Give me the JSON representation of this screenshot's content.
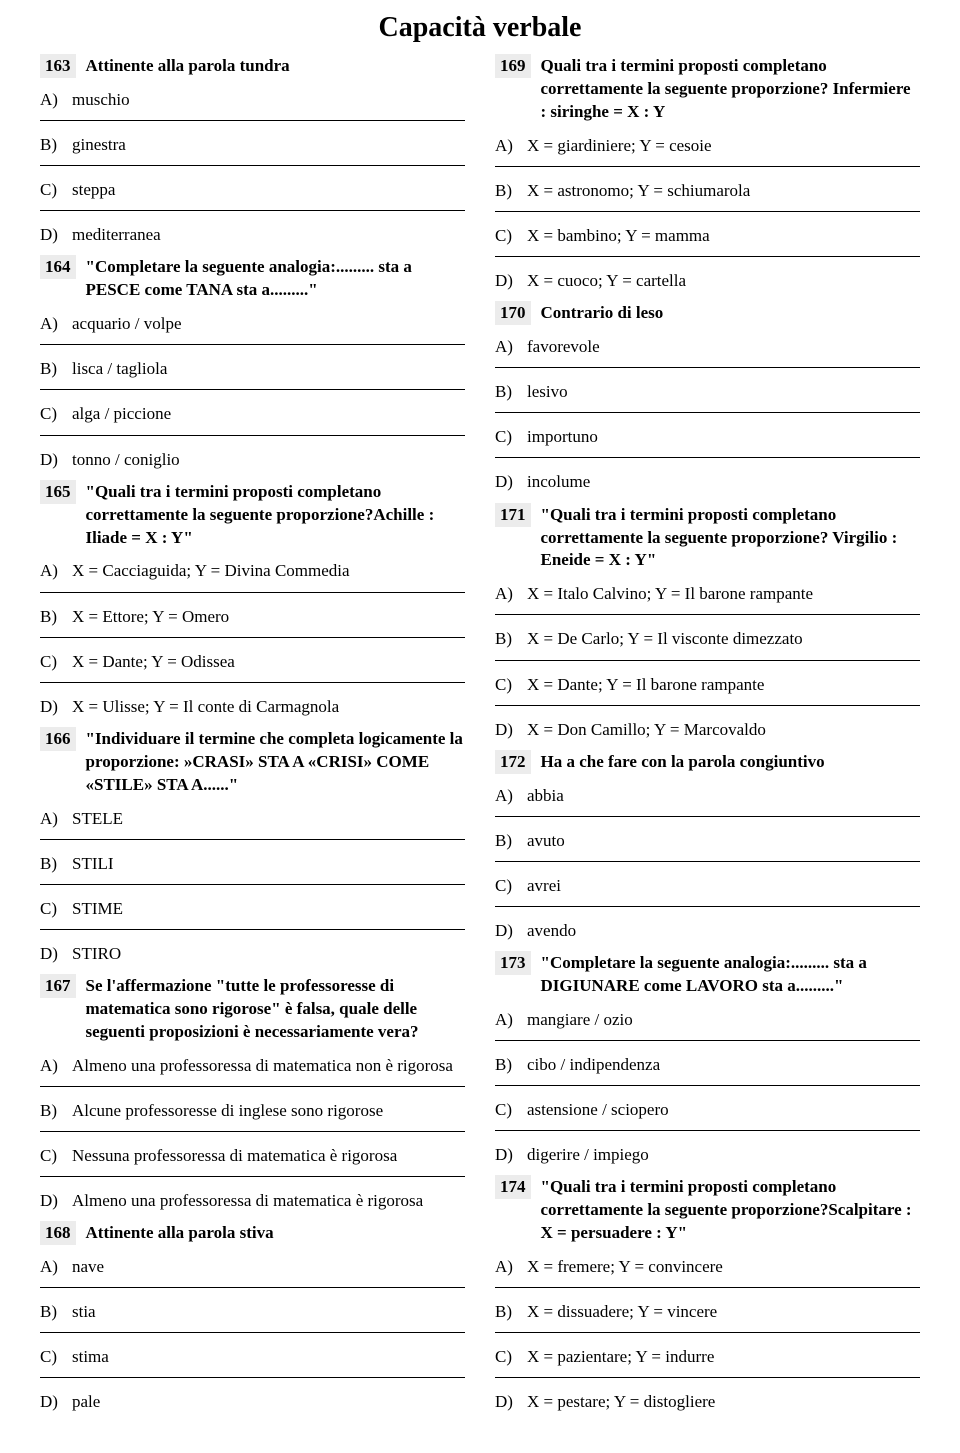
{
  "title": "Capacità verbale",
  "left": [
    {
      "num": "163",
      "q": "Attinente alla parola tundra",
      "opts": [
        "muschio",
        "ginestra",
        "steppa",
        "mediterranea"
      ]
    },
    {
      "num": "164",
      "q": "\"Completare la seguente analogia:......... sta a PESCE come TANA sta a.........\"",
      "opts": [
        "acquario / volpe",
        "lisca / tagliola",
        "alga / piccione",
        "tonno / coniglio"
      ]
    },
    {
      "num": "165",
      "q": "\"Quali tra i termini proposti completano correttamente la seguente proporzione?Achille : Iliade = X : Y\"",
      "opts": [
        "X = Cacciaguida; Y = Divina Commedia",
        "X = Ettore; Y = Omero",
        "X = Dante; Y = Odissea",
        "X = Ulisse; Y = Il conte di Carmagnola"
      ]
    },
    {
      "num": "166",
      "q": "\"Individuare il termine che completa logicamente la proporzione: »CRASI» STA A «CRISI» COME «STILE» STA A......\"",
      "opts": [
        "STELE",
        "STILI",
        "STIME",
        "STIRO"
      ]
    },
    {
      "num": "167",
      "q": "Se l'affermazione \"tutte le professoresse di matematica sono rigorose\" è falsa, quale delle seguenti proposizioni è necessariamente vera?",
      "opts": [
        "Almeno una professoressa di matematica non è rigorosa",
        "Alcune professoresse di inglese sono rigorose",
        "Nessuna professoressa di matematica è rigorosa",
        "Almeno una professoressa di matematica è rigorosa"
      ]
    },
    {
      "num": "168",
      "q": "Attinente alla parola  stiva",
      "opts": [
        "nave",
        "stia",
        "stima",
        "pale"
      ]
    }
  ],
  "right": [
    {
      "num": "169",
      "q": "Quali tra i termini proposti completano correttamente la seguente proporzione? Infermiere : siringhe = X : Y",
      "opts": [
        "X = giardiniere; Y = cesoie",
        "X = astronomo; Y = schiumarola",
        "X = bambino; Y = mamma",
        "X = cuoco; Y = cartella"
      ]
    },
    {
      "num": "170",
      "q": "Contrario di leso",
      "opts": [
        "favorevole",
        "lesivo",
        "importuno",
        "incolume"
      ]
    },
    {
      "num": "171",
      "q": "\"Quali tra i termini proposti completano correttamente la seguente proporzione? Virgilio : Eneide = X : Y\"",
      "opts": [
        "X = Italo Calvino; Y = Il barone rampante",
        "X = De Carlo; Y = Il visconte dimezzato",
        "X = Dante; Y = Il barone rampante",
        "X = Don Camillo; Y = Marcovaldo"
      ]
    },
    {
      "num": "172",
      "q": "Ha a che fare con la parola congiuntivo",
      "opts": [
        "abbia",
        "avuto",
        "avrei",
        "avendo"
      ]
    },
    {
      "num": "173",
      "q": "\"Completare la seguente analogia:......... sta a DIGIUNARE come LAVORO sta a.........\"",
      "opts": [
        "mangiare / ozio",
        "cibo / indipendenza",
        "astensione / sciopero",
        "digerire / impiego"
      ]
    },
    {
      "num": "174",
      "q": "\"Quali tra i termini proposti completano correttamente la seguente proporzione?Scalpitare : X = persuadere : Y\"",
      "opts": [
        "X = fremere; Y = convincere",
        "X = dissuadere; Y = vincere",
        "X = pazientare; Y = indurre",
        "X = pestare; Y = distogliere"
      ]
    }
  ],
  "letters": [
    "A)",
    "B)",
    "C)",
    "D)"
  ]
}
